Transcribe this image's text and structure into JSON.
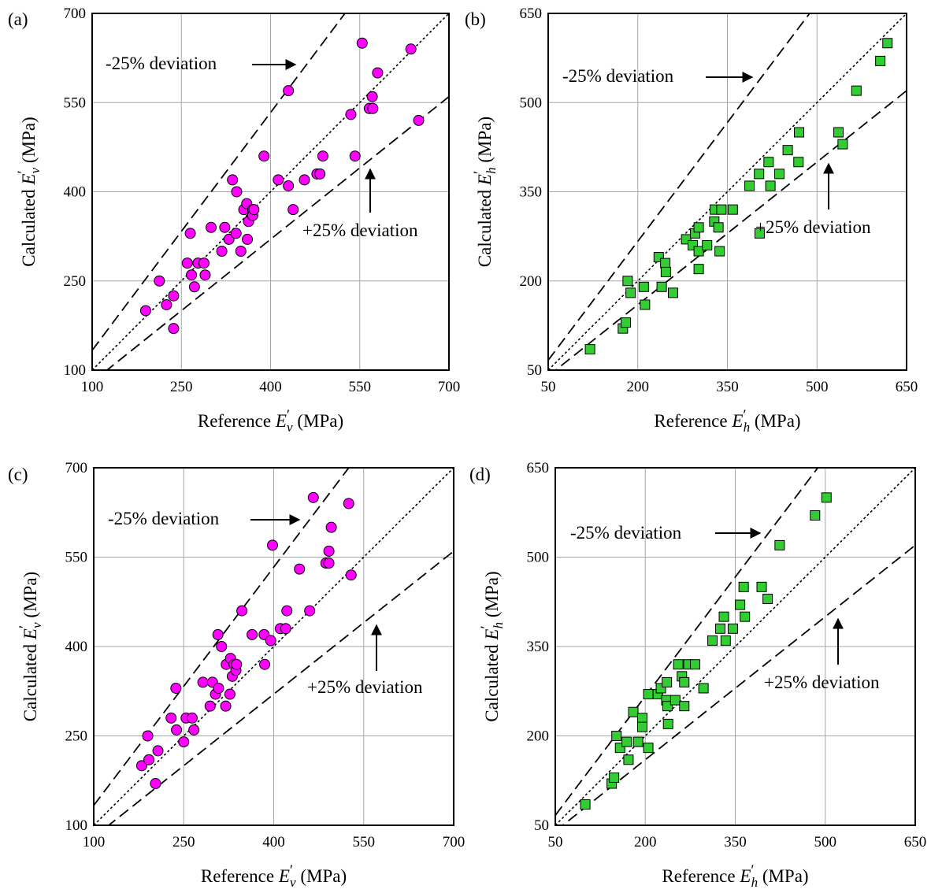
{
  "figure": {
    "panels": [
      {
        "id": "a",
        "label": "(a)",
        "xlabel_prefix": "Reference ",
        "xlabel_sym": "E",
        "xlabel_sup": "′",
        "xlabel_sub": "v",
        "xlabel_unit": " (MPa)",
        "ylabel_prefix": "Calculated ",
        "ylabel_sym": "E",
        "ylabel_sup": "′",
        "ylabel_sub": "v",
        "ylabel_unit": " (MPa)",
        "upper_note": "-25% deviation",
        "lower_note": "+25% deviation"
      },
      {
        "id": "b",
        "label": "(b)",
        "xlabel_prefix": "Reference ",
        "xlabel_sym": "E",
        "xlabel_sup": "′",
        "xlabel_sub": "h",
        "xlabel_unit": " (MPa)",
        "ylabel_prefix": "Calculated ",
        "ylabel_sym": "E",
        "ylabel_sup": "′",
        "ylabel_sub": "h",
        "ylabel_unit": " (MPa)",
        "upper_note": "-25% deviation",
        "lower_note": "+25% deviation"
      },
      {
        "id": "c",
        "label": "(c)",
        "xlabel_prefix": "Reference ",
        "xlabel_sym": "E",
        "xlabel_sup": "′",
        "xlabel_sub": "v",
        "xlabel_unit": " (MPa)",
        "ylabel_prefix": "Calculated ",
        "ylabel_sym": "E",
        "ylabel_sup": "′",
        "ylabel_sub": "v",
        "ylabel_unit": " (MPa)",
        "upper_note": "-25% deviation",
        "lower_note": "+25% deviation"
      },
      {
        "id": "d",
        "label": "(d)",
        "xlabel_prefix": "Reference ",
        "xlabel_sym": "E",
        "xlabel_sup": "′",
        "xlabel_sub": "h",
        "xlabel_unit": " (MPa)",
        "ylabel_prefix": "Calculated ",
        "ylabel_sym": "E",
        "ylabel_sup": "′",
        "ylabel_sub": "h",
        "ylabel_unit": " (MPa)",
        "upper_note": "-25% deviation",
        "lower_note": "+25% deviation"
      }
    ]
  },
  "chart_data": [
    {
      "panel": "a",
      "type": "scatter",
      "marker": "circle",
      "color": "#ff00ff",
      "xlim": [
        100,
        700
      ],
      "ylim": [
        100,
        700
      ],
      "xticks": [
        100,
        250,
        400,
        550,
        700
      ],
      "yticks": [
        100,
        250,
        400,
        550,
        700
      ],
      "grid": true,
      "reference_lines": [
        {
          "label": "1:1",
          "style": "dotted",
          "slope": 1.0
        },
        {
          "label": "-25% deviation",
          "style": "dashed",
          "slope": 1.333
        },
        {
          "label": "+25% deviation",
          "style": "dashed",
          "slope": 0.8
        }
      ],
      "points": [
        [
          190,
          200
        ],
        [
          213,
          250
        ],
        [
          225,
          210
        ],
        [
          237,
          225
        ],
        [
          237,
          170
        ],
        [
          260,
          280
        ],
        [
          265,
          330
        ],
        [
          267,
          260
        ],
        [
          272,
          240
        ],
        [
          278,
          280
        ],
        [
          288,
          280
        ],
        [
          290,
          260
        ],
        [
          300,
          340
        ],
        [
          318,
          300
        ],
        [
          323,
          340
        ],
        [
          330,
          320
        ],
        [
          336,
          420
        ],
        [
          342,
          330
        ],
        [
          343,
          400
        ],
        [
          350,
          300
        ],
        [
          355,
          370
        ],
        [
          360,
          380
        ],
        [
          361,
          320
        ],
        [
          363,
          350
        ],
        [
          370,
          370
        ],
        [
          370,
          360
        ],
        [
          372,
          370
        ],
        [
          389,
          460
        ],
        [
          413,
          420
        ],
        [
          438,
          370
        ],
        [
          430,
          410
        ],
        [
          457,
          420
        ],
        [
          478,
          430
        ],
        [
          483,
          430
        ],
        [
          488,
          460
        ],
        [
          542,
          460
        ],
        [
          535,
          530
        ],
        [
          554,
          650
        ],
        [
          430,
          570
        ],
        [
          566,
          540
        ],
        [
          572,
          540
        ],
        [
          571,
          560
        ],
        [
          580,
          600
        ],
        [
          636,
          640
        ],
        [
          649,
          520
        ]
      ]
    },
    {
      "panel": "b",
      "type": "scatter",
      "marker": "square",
      "color": "#33cc33",
      "xlim": [
        50,
        650
      ],
      "ylim": [
        50,
        650
      ],
      "xticks": [
        50,
        200,
        350,
        500,
        650
      ],
      "yticks": [
        50,
        200,
        350,
        500,
        650
      ],
      "grid": true,
      "reference_lines": [
        {
          "label": "1:1",
          "style": "dotted",
          "slope": 1.0
        },
        {
          "label": "-25% deviation",
          "style": "dashed",
          "slope": 1.333
        },
        {
          "label": "+25% deviation",
          "style": "dashed",
          "slope": 0.8
        }
      ],
      "points": [
        [
          120,
          85
        ],
        [
          175,
          120
        ],
        [
          180,
          130
        ],
        [
          183,
          200
        ],
        [
          188,
          180
        ],
        [
          210,
          190
        ],
        [
          212,
          160
        ],
        [
          235,
          240
        ],
        [
          240,
          190
        ],
        [
          246,
          230
        ],
        [
          247,
          215
        ],
        [
          259,
          180
        ],
        [
          281,
          270
        ],
        [
          292,
          260
        ],
        [
          296,
          280
        ],
        [
          302,
          290
        ],
        [
          302,
          250
        ],
        [
          302,
          220
        ],
        [
          316,
          260
        ],
        [
          328,
          300
        ],
        [
          329,
          320
        ],
        [
          340,
          320
        ],
        [
          335,
          290
        ],
        [
          337,
          250
        ],
        [
          359,
          320
        ],
        [
          387,
          360
        ],
        [
          403,
          380
        ],
        [
          404,
          280
        ],
        [
          419,
          400
        ],
        [
          422,
          360
        ],
        [
          437,
          380
        ],
        [
          451,
          420
        ],
        [
          469,
          400
        ],
        [
          470,
          450
        ],
        [
          536,
          450
        ],
        [
          543,
          430
        ],
        [
          566,
          520
        ],
        [
          606,
          570
        ],
        [
          618,
          600
        ]
      ]
    },
    {
      "panel": "c",
      "type": "scatter",
      "marker": "circle",
      "color": "#ff00ff",
      "xlim": [
        100,
        700
      ],
      "ylim": [
        100,
        700
      ],
      "xticks": [
        100,
        250,
        400,
        550,
        700
      ],
      "yticks": [
        100,
        250,
        400,
        550,
        700
      ],
      "grid": true,
      "reference_lines": [
        {
          "label": "1:1",
          "style": "dotted",
          "slope": 1.0
        },
        {
          "label": "-25% deviation",
          "style": "dashed",
          "slope": 1.333
        },
        {
          "label": "+25% deviation",
          "style": "dashed",
          "slope": 0.8
        }
      ],
      "points": [
        [
          180,
          200
        ],
        [
          190,
          250
        ],
        [
          192,
          210
        ],
        [
          203,
          170
        ],
        [
          207,
          225
        ],
        [
          229,
          280
        ],
        [
          237,
          330
        ],
        [
          238,
          260
        ],
        [
          250,
          240
        ],
        [
          254,
          280
        ],
        [
          264,
          280
        ],
        [
          267,
          260
        ],
        [
          282,
          340
        ],
        [
          294,
          300
        ],
        [
          298,
          340
        ],
        [
          303,
          320
        ],
        [
          307,
          420
        ],
        [
          308,
          330
        ],
        [
          313,
          400
        ],
        [
          320,
          300
        ],
        [
          321,
          370
        ],
        [
          327,
          320
        ],
        [
          328,
          380
        ],
        [
          331,
          350
        ],
        [
          334,
          370
        ],
        [
          337,
          360
        ],
        [
          338,
          370
        ],
        [
          347,
          460
        ],
        [
          364,
          420
        ],
        [
          385,
          370
        ],
        [
          384,
          420
        ],
        [
          395,
          410
        ],
        [
          398,
          570
        ],
        [
          411,
          430
        ],
        [
          420,
          430
        ],
        [
          422,
          460
        ],
        [
          443,
          530
        ],
        [
          460,
          460
        ],
        [
          466,
          650
        ],
        [
          487,
          540
        ],
        [
          492,
          540
        ],
        [
          492,
          560
        ],
        [
          496,
          600
        ],
        [
          525,
          640
        ],
        [
          529,
          520
        ]
      ]
    },
    {
      "panel": "d",
      "type": "scatter",
      "marker": "square",
      "color": "#33cc33",
      "xlim": [
        50,
        650
      ],
      "ylim": [
        50,
        650
      ],
      "xticks": [
        50,
        200,
        350,
        500,
        650
      ],
      "yticks": [
        50,
        200,
        350,
        500,
        650
      ],
      "grid": true,
      "reference_lines": [
        {
          "label": "1:1",
          "style": "dotted",
          "slope": 1.0
        },
        {
          "label": "-25% deviation",
          "style": "dashed",
          "slope": 1.333
        },
        {
          "label": "+25% deviation",
          "style": "dashed",
          "slope": 0.8
        }
      ],
      "points": [
        [
          100,
          85
        ],
        [
          144,
          120
        ],
        [
          148,
          130
        ],
        [
          152,
          200
        ],
        [
          158,
          180
        ],
        [
          169,
          190
        ],
        [
          172,
          160
        ],
        [
          180,
          240
        ],
        [
          188,
          190
        ],
        [
          195,
          230
        ],
        [
          195,
          215
        ],
        [
          205,
          180
        ],
        [
          205,
          270
        ],
        [
          221,
          270
        ],
        [
          226,
          280
        ],
        [
          235,
          260
        ],
        [
          236,
          290
        ],
        [
          237,
          250
        ],
        [
          238,
          220
        ],
        [
          250,
          260
        ],
        [
          255,
          320
        ],
        [
          261,
          300
        ],
        [
          265,
          250
        ],
        [
          265,
          290
        ],
        [
          272,
          320
        ],
        [
          283,
          320
        ],
        [
          297,
          280
        ],
        [
          312,
          360
        ],
        [
          325,
          380
        ],
        [
          331,
          400
        ],
        [
          334,
          360
        ],
        [
          346,
          380
        ],
        [
          358,
          420
        ],
        [
          364,
          450
        ],
        [
          366,
          400
        ],
        [
          394,
          450
        ],
        [
          404,
          430
        ],
        [
          424,
          520
        ],
        [
          483,
          570
        ],
        [
          502,
          600
        ]
      ]
    }
  ]
}
